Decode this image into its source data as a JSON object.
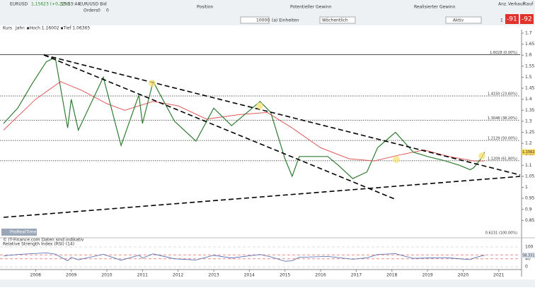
{
  "toolbar": {
    "symbol": "EURUSD",
    "quote": "1,15623 (+0,22%)",
    "time": "15:53:44",
    "instrument": "EUR/USD Bid",
    "orders_label": "Orders",
    "orders": [
      "0",
      "0"
    ],
    "position_label": "Position",
    "quantity": "10000",
    "unit": "(a) Einheiten",
    "potential_label": "Potentieller Gewinn",
    "period": "Wöchentlich",
    "realized_label": "Realisierter Gewinn",
    "mode": "Aktiv",
    "qty_label": "Anz.",
    "qty": "1",
    "sell_label": "Verkauf",
    "sell": "-91",
    "buy_label": "Kauf",
    "buy": "-92"
  },
  "chart_data": {
    "type": "line",
    "legend": "Kurs",
    "info": "Jahr: ▪Hoch 1.16002 ▪Tief 1.06365",
    "x": [
      2007.1,
      2007.5,
      2007.9,
      2008.3,
      2008.55,
      2008.9,
      2009.0,
      2009.2,
      2009.9,
      2010.4,
      2010.9,
      2011.0,
      2011.3,
      2011.9,
      2012.5,
      2013.0,
      2013.5,
      2014.3,
      2014.6,
      2015.0,
      2015.2,
      2015.4,
      2016.2,
      2016.5,
      2016.9,
      2017.3,
      2017.6,
      2018.1,
      2018.6,
      2019.0,
      2019.5,
      2019.9,
      2020.2,
      2020.3,
      2020.5,
      2020.6
    ],
    "series": [
      {
        "name": "EUR/USD",
        "color": "#2f7d32",
        "values": [
          1.29,
          1.36,
          1.47,
          1.57,
          1.59,
          1.27,
          1.4,
          1.26,
          1.5,
          1.19,
          1.42,
          1.29,
          1.48,
          1.3,
          1.21,
          1.36,
          1.28,
          1.39,
          1.34,
          1.13,
          1.05,
          1.14,
          1.14,
          1.1,
          1.04,
          1.07,
          1.18,
          1.25,
          1.16,
          1.14,
          1.12,
          1.1,
          1.08,
          1.09,
          1.13,
          1.16
        ]
      }
    ],
    "ma": {
      "color": "#e05a5a",
      "x": [
        2007.1,
        2008.0,
        2008.7,
        2009.3,
        2010.0,
        2010.5,
        2011.3,
        2012.0,
        2012.8,
        2013.7,
        2014.5,
        2015.2,
        2016.0,
        2016.8,
        2017.5,
        2018.3,
        2018.9,
        2019.6,
        2020.3,
        2020.6
      ],
      "values": [
        1.26,
        1.4,
        1.48,
        1.44,
        1.38,
        1.35,
        1.39,
        1.37,
        1.31,
        1.33,
        1.34,
        1.27,
        1.18,
        1.13,
        1.12,
        1.15,
        1.17,
        1.14,
        1.12,
        1.12
      ]
    },
    "last": "1.15623",
    "xlim": [
      2007.1,
      2021.6
    ],
    "xticks": [
      2008,
      2009,
      2010,
      2011,
      2012,
      2013,
      2014,
      2015,
      2016,
      2017,
      2018,
      2019,
      2020,
      2021
    ],
    "ylim": [
      0.8,
      1.7
    ],
    "yticks": [
      0.85,
      0.9,
      0.95,
      1,
      1.05,
      1.1,
      1.15,
      1.2,
      1.25,
      1.3,
      1.35,
      1.4,
      1.45,
      1.5,
      1.55,
      1.6,
      1.65,
      1.7
    ],
    "fib_levels": [
      {
        "value": 1.6028,
        "label": "1.6028 (0.00%)"
      },
      {
        "value": 1.415,
        "label": "1.4150 (23.60%)"
      },
      {
        "value": 1.3048,
        "label": "1.3048 (38.20%)"
      },
      {
        "value": 1.2129,
        "label": "1.2129 (50.00%)"
      },
      {
        "value": 1.1209,
        "label": "1.1209 (61.80%)"
      },
      {
        "value": 0.6231,
        "label": "0.6231 (100.00%)"
      }
    ]
  },
  "rsi": {
    "title": "Relative Strength Index (RSI) (14)",
    "last": "58,331",
    "ylim": [
      0,
      100
    ],
    "yticks": [
      0,
      40,
      60,
      100
    ],
    "values": [
      55,
      62,
      66,
      70,
      64,
      30,
      48,
      35,
      63,
      33,
      58,
      44,
      65,
      40,
      34,
      58,
      44,
      62,
      50,
      28,
      30,
      48,
      52,
      46,
      38,
      45,
      62,
      66,
      42,
      44,
      46,
      40,
      36,
      44,
      54,
      58
    ]
  },
  "footer": {
    "source": "© IT-Finance.com Daten sind indikativ",
    "watermark": "ProRealTime"
  }
}
